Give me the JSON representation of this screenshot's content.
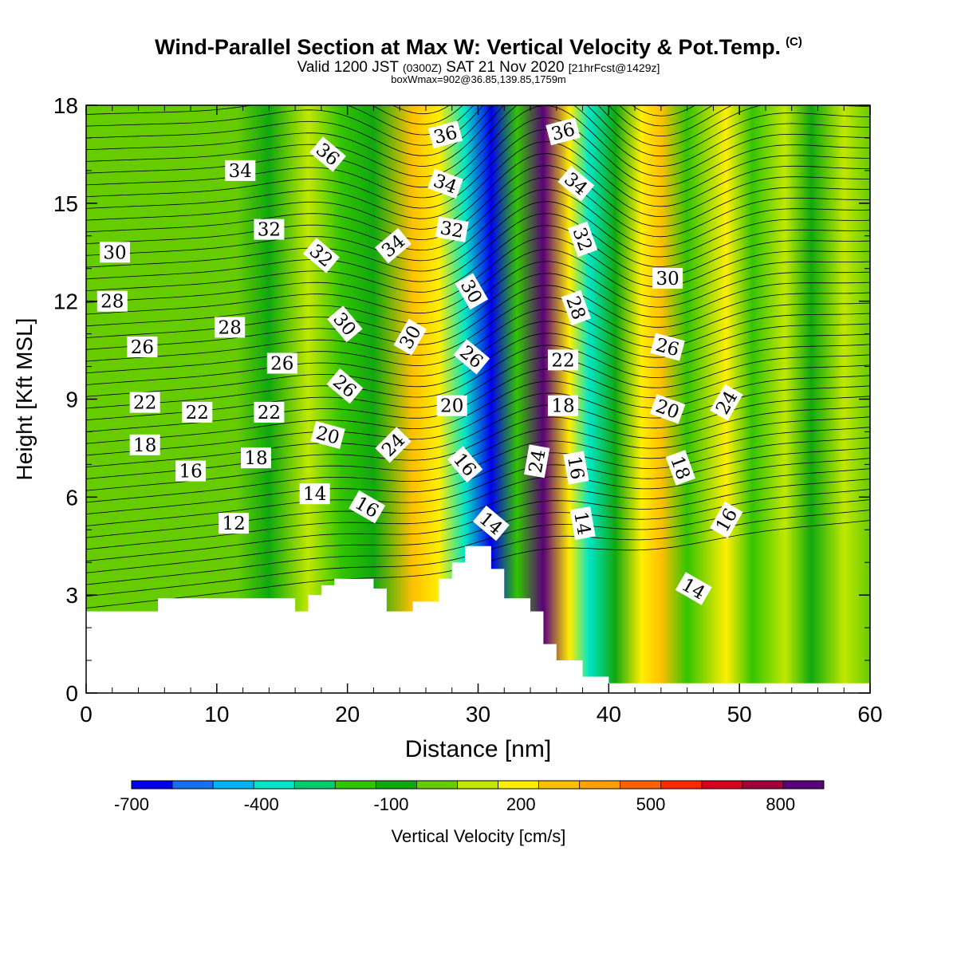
{
  "title": {
    "main": "Wind-Parallel Section at Max W: Vertical Velocity & Pot.Temp.",
    "copyright": "(C)",
    "valid_a": "Valid 1200 JST",
    "valid_z": "(0300Z)",
    "valid_b": "SAT 21 Nov 2020",
    "valid_fcst": "[21hrFcst@1429z]",
    "boxline": "boxWmax=902@36.85,139.85,1759m"
  },
  "chart_data": {
    "type": "heatmap",
    "xlabel": "Distance [nm]",
    "ylabel": "Height [Kft MSL]",
    "xlim": [
      0,
      60
    ],
    "ylim": [
      0,
      18
    ],
    "x_ticks": [
      "0",
      "10",
      "20",
      "30",
      "40",
      "50",
      "60"
    ],
    "y_ticks": [
      "0",
      "3",
      "6",
      "9",
      "12",
      "15",
      "18"
    ],
    "colorbar": {
      "label": "Vertical Velocity [cm/s]",
      "tick_labels": [
        "-700",
        "-400",
        "-100",
        "200",
        "500",
        "800"
      ],
      "levels": [
        -700,
        -600,
        -500,
        -400,
        -300,
        -200,
        -100,
        0,
        100,
        200,
        300,
        400,
        500,
        600,
        700,
        800,
        900
      ],
      "colors": [
        "#0000ee",
        "#1870f0",
        "#00b4f4",
        "#00e6c8",
        "#00cc6e",
        "#33c400",
        "#0fa80f",
        "#66cc00",
        "#c0e800",
        "#ffee00",
        "#ffc000",
        "#ffa000",
        "#ff6000",
        "#ff2800",
        "#d8001e",
        "#a0003c",
        "#5a007a"
      ]
    },
    "vertical_velocity_bands": [
      {
        "x": 0,
        "w": 0
      },
      {
        "x": 5,
        "w": 10
      },
      {
        "x": 11.5,
        "w": 90
      },
      {
        "x": 14,
        "w": -10
      },
      {
        "x": 17,
        "w": 100
      },
      {
        "x": 19.5,
        "w": -150
      },
      {
        "x": 22,
        "w": -80
      },
      {
        "x": 25,
        "w": 350
      },
      {
        "x": 27,
        "w": 200
      },
      {
        "x": 29,
        "w": -350
      },
      {
        "x": 31,
        "w": -650
      },
      {
        "x": 33,
        "w": -200
      },
      {
        "x": 35,
        "w": 902
      },
      {
        "x": 37,
        "w": 200
      },
      {
        "x": 38.5,
        "w": -350
      },
      {
        "x": 40.5,
        "w": -100
      },
      {
        "x": 42.5,
        "w": 250
      },
      {
        "x": 44,
        "w": 350
      },
      {
        "x": 46,
        "w": -150
      },
      {
        "x": 49,
        "w": 250
      },
      {
        "x": 51,
        "w": -120
      },
      {
        "x": 53.5,
        "w": 160
      },
      {
        "x": 55.5,
        "w": -40
      },
      {
        "x": 58,
        "w": 150
      },
      {
        "x": 60,
        "w": 50
      }
    ],
    "terrain": [
      {
        "x": 0,
        "h": 2.5
      },
      {
        "x": 5.5,
        "h": 2.9
      },
      {
        "x": 15,
        "h": 2.9
      },
      {
        "x": 16,
        "h": 2.5
      },
      {
        "x": 17,
        "h": 3.0
      },
      {
        "x": 18,
        "h": 3.3
      },
      {
        "x": 19,
        "h": 3.5
      },
      {
        "x": 22,
        "h": 3.2
      },
      {
        "x": 23,
        "h": 2.5
      },
      {
        "x": 25,
        "h": 2.8
      },
      {
        "x": 27,
        "h": 3.5
      },
      {
        "x": 28,
        "h": 4.0
      },
      {
        "x": 29,
        "h": 4.5
      },
      {
        "x": 31,
        "h": 3.8
      },
      {
        "x": 32,
        "h": 2.9
      },
      {
        "x": 34,
        "h": 2.5
      },
      {
        "x": 35,
        "h": 1.5
      },
      {
        "x": 36,
        "h": 1.0
      },
      {
        "x": 38,
        "h": 0.5
      },
      {
        "x": 40,
        "h": 0.3
      },
      {
        "x": 60,
        "h": 0.3
      }
    ],
    "theta_labels": [
      {
        "text": "34",
        "x": 11.8,
        "y": 16.0,
        "rot": 0
      },
      {
        "text": "36",
        "x": 18.5,
        "y": 16.5,
        "rot": 40
      },
      {
        "text": "36",
        "x": 27.5,
        "y": 17.1,
        "rot": -15
      },
      {
        "text": "36",
        "x": 36.5,
        "y": 17.2,
        "rot": -15
      },
      {
        "text": "34",
        "x": 27.5,
        "y": 15.6,
        "rot": 20
      },
      {
        "text": "34",
        "x": 37.5,
        "y": 15.6,
        "rot": 40
      },
      {
        "text": "34",
        "x": 23.5,
        "y": 13.7,
        "rot": -40
      },
      {
        "text": "32",
        "x": 14.0,
        "y": 14.2,
        "rot": 0
      },
      {
        "text": "32",
        "x": 18.0,
        "y": 13.4,
        "rot": 40
      },
      {
        "text": "32",
        "x": 28.0,
        "y": 14.2,
        "rot": 10
      },
      {
        "text": "32",
        "x": 38.0,
        "y": 13.9,
        "rot": 70
      },
      {
        "text": "30",
        "x": 2.2,
        "y": 13.5,
        "rot": 0
      },
      {
        "text": "30",
        "x": 19.8,
        "y": 11.3,
        "rot": 50
      },
      {
        "text": "30",
        "x": 24.8,
        "y": 10.9,
        "rot": -60
      },
      {
        "text": "30",
        "x": 29.5,
        "y": 12.3,
        "rot": 60
      },
      {
        "text": "30",
        "x": 44.5,
        "y": 12.7,
        "rot": 0
      },
      {
        "text": "28",
        "x": 2.0,
        "y": 12.0,
        "rot": 0
      },
      {
        "text": "28",
        "x": 11.0,
        "y": 11.2,
        "rot": 0
      },
      {
        "text": "28",
        "x": 37.5,
        "y": 11.8,
        "rot": 70
      },
      {
        "text": "26",
        "x": 4.3,
        "y": 10.6,
        "rot": 0
      },
      {
        "text": "26",
        "x": 15.0,
        "y": 10.1,
        "rot": 0
      },
      {
        "text": "26",
        "x": 19.8,
        "y": 9.4,
        "rot": 40
      },
      {
        "text": "26",
        "x": 29.5,
        "y": 10.3,
        "rot": 40
      },
      {
        "text": "26",
        "x": 44.5,
        "y": 10.6,
        "rot": 15
      },
      {
        "text": "24",
        "x": 23.5,
        "y": 7.6,
        "rot": -45
      },
      {
        "text": "24",
        "x": 34.5,
        "y": 7.1,
        "rot": -80
      },
      {
        "text": "24",
        "x": 49.0,
        "y": 8.9,
        "rot": -60
      },
      {
        "text": "22",
        "x": 4.5,
        "y": 8.9,
        "rot": 0
      },
      {
        "text": "22",
        "x": 8.5,
        "y": 8.6,
        "rot": 0
      },
      {
        "text": "22",
        "x": 14.0,
        "y": 8.6,
        "rot": 0
      },
      {
        "text": "22",
        "x": 36.5,
        "y": 10.2,
        "rot": 0
      },
      {
        "text": "20",
        "x": 18.5,
        "y": 7.9,
        "rot": 15
      },
      {
        "text": "20",
        "x": 28.0,
        "y": 8.8,
        "rot": 0
      },
      {
        "text": "20",
        "x": 44.5,
        "y": 8.7,
        "rot": 20
      },
      {
        "text": "18",
        "x": 4.5,
        "y": 7.6,
        "rot": 0
      },
      {
        "text": "18",
        "x": 13.0,
        "y": 7.2,
        "rot": 0
      },
      {
        "text": "18",
        "x": 36.5,
        "y": 8.8,
        "rot": 0
      },
      {
        "text": "18",
        "x": 45.5,
        "y": 6.9,
        "rot": 70
      },
      {
        "text": "16",
        "x": 8.0,
        "y": 6.8,
        "rot": 0
      },
      {
        "text": "16",
        "x": 21.5,
        "y": 5.7,
        "rot": 30
      },
      {
        "text": "16",
        "x": 29.0,
        "y": 7.0,
        "rot": 50
      },
      {
        "text": "16",
        "x": 37.5,
        "y": 6.9,
        "rot": 80
      },
      {
        "text": "16",
        "x": 49.0,
        "y": 5.3,
        "rot": -60
      },
      {
        "text": "14",
        "x": 17.5,
        "y": 6.1,
        "rot": 0
      },
      {
        "text": "14",
        "x": 31.0,
        "y": 5.2,
        "rot": 40
      },
      {
        "text": "14",
        "x": 38.0,
        "y": 5.2,
        "rot": 80
      },
      {
        "text": "14",
        "x": 46.5,
        "y": 3.2,
        "rot": 30
      },
      {
        "text": "12",
        "x": 11.3,
        "y": 5.2,
        "rot": 0
      }
    ]
  }
}
